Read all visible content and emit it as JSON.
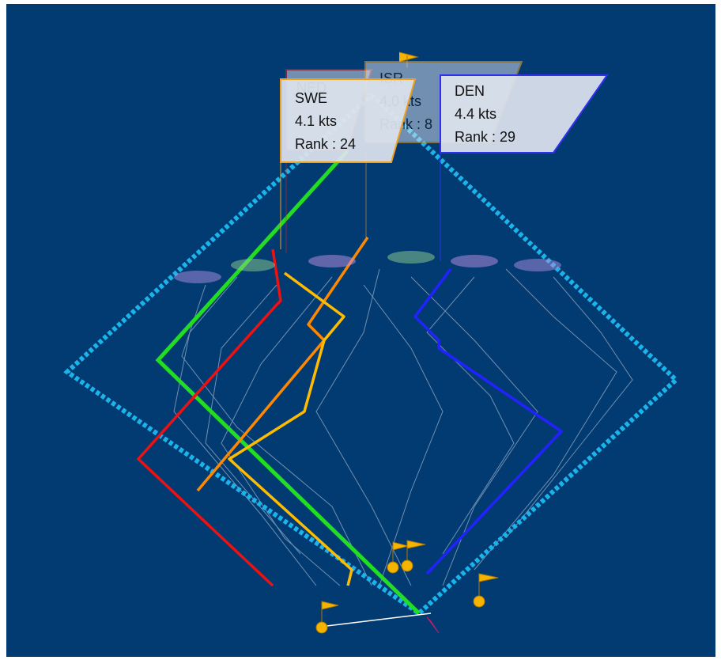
{
  "boats": [
    {
      "name": "NED",
      "color": "#e02020"
    },
    {
      "name": "ISR",
      "speed": "4.0 kts",
      "rank": "Rank : 8",
      "color": "#f0a020"
    },
    {
      "name": "SWE",
      "speed": "4.1 kts",
      "rank": "Rank : 24",
      "color": "#f0a020"
    },
    {
      "name": "DEN",
      "speed": "4.4 kts",
      "rank": "Rank : 29",
      "color": "#3030f0"
    }
  ]
}
